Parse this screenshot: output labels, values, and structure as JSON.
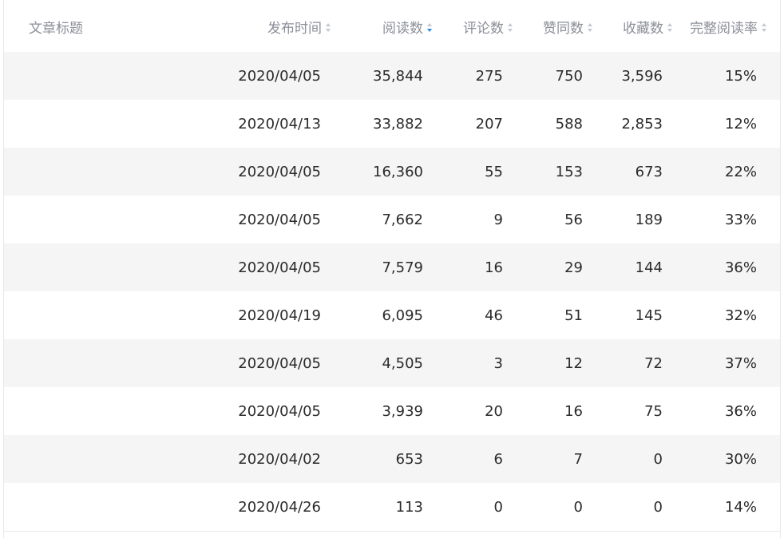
{
  "columns": {
    "title": "文章标题",
    "date": "发布时间",
    "reads": "阅读数",
    "comments": "评论数",
    "likes": "赞同数",
    "favorites": "收藏数",
    "completion": "完整阅读率"
  },
  "sort": {
    "active_column": "reads",
    "direction": "desc",
    "active_color": "#1f8de8",
    "inactive_color": "#c4c8cf"
  },
  "rows": [
    {
      "title": "",
      "date": "2020/04/05",
      "reads": "35,844",
      "comments": "275",
      "likes": "750",
      "favorites": "3,596",
      "completion": "15%"
    },
    {
      "title": "",
      "date": "2020/04/13",
      "reads": "33,882",
      "comments": "207",
      "likes": "588",
      "favorites": "2,853",
      "completion": "12%"
    },
    {
      "title": "",
      "date": "2020/04/05",
      "reads": "16,360",
      "comments": "55",
      "likes": "153",
      "favorites": "673",
      "completion": "22%"
    },
    {
      "title": "",
      "date": "2020/04/05",
      "reads": "7,662",
      "comments": "9",
      "likes": "56",
      "favorites": "189",
      "completion": "33%"
    },
    {
      "title": "",
      "date": "2020/04/05",
      "reads": "7,579",
      "comments": "16",
      "likes": "29",
      "favorites": "144",
      "completion": "36%"
    },
    {
      "title": "",
      "date": "2020/04/19",
      "reads": "6,095",
      "comments": "46",
      "likes": "51",
      "favorites": "145",
      "completion": "32%"
    },
    {
      "title": "",
      "date": "2020/04/05",
      "reads": "4,505",
      "comments": "3",
      "likes": "12",
      "favorites": "72",
      "completion": "37%"
    },
    {
      "title": "",
      "date": "2020/04/05",
      "reads": "3,939",
      "comments": "20",
      "likes": "16",
      "favorites": "75",
      "completion": "36%"
    },
    {
      "title": "",
      "date": "2020/04/02",
      "reads": "653",
      "comments": "6",
      "likes": "7",
      "favorites": "0",
      "completion": "30%"
    },
    {
      "title": "",
      "date": "2020/04/26",
      "reads": "113",
      "comments": "0",
      "likes": "0",
      "favorites": "0",
      "completion": "14%"
    }
  ]
}
